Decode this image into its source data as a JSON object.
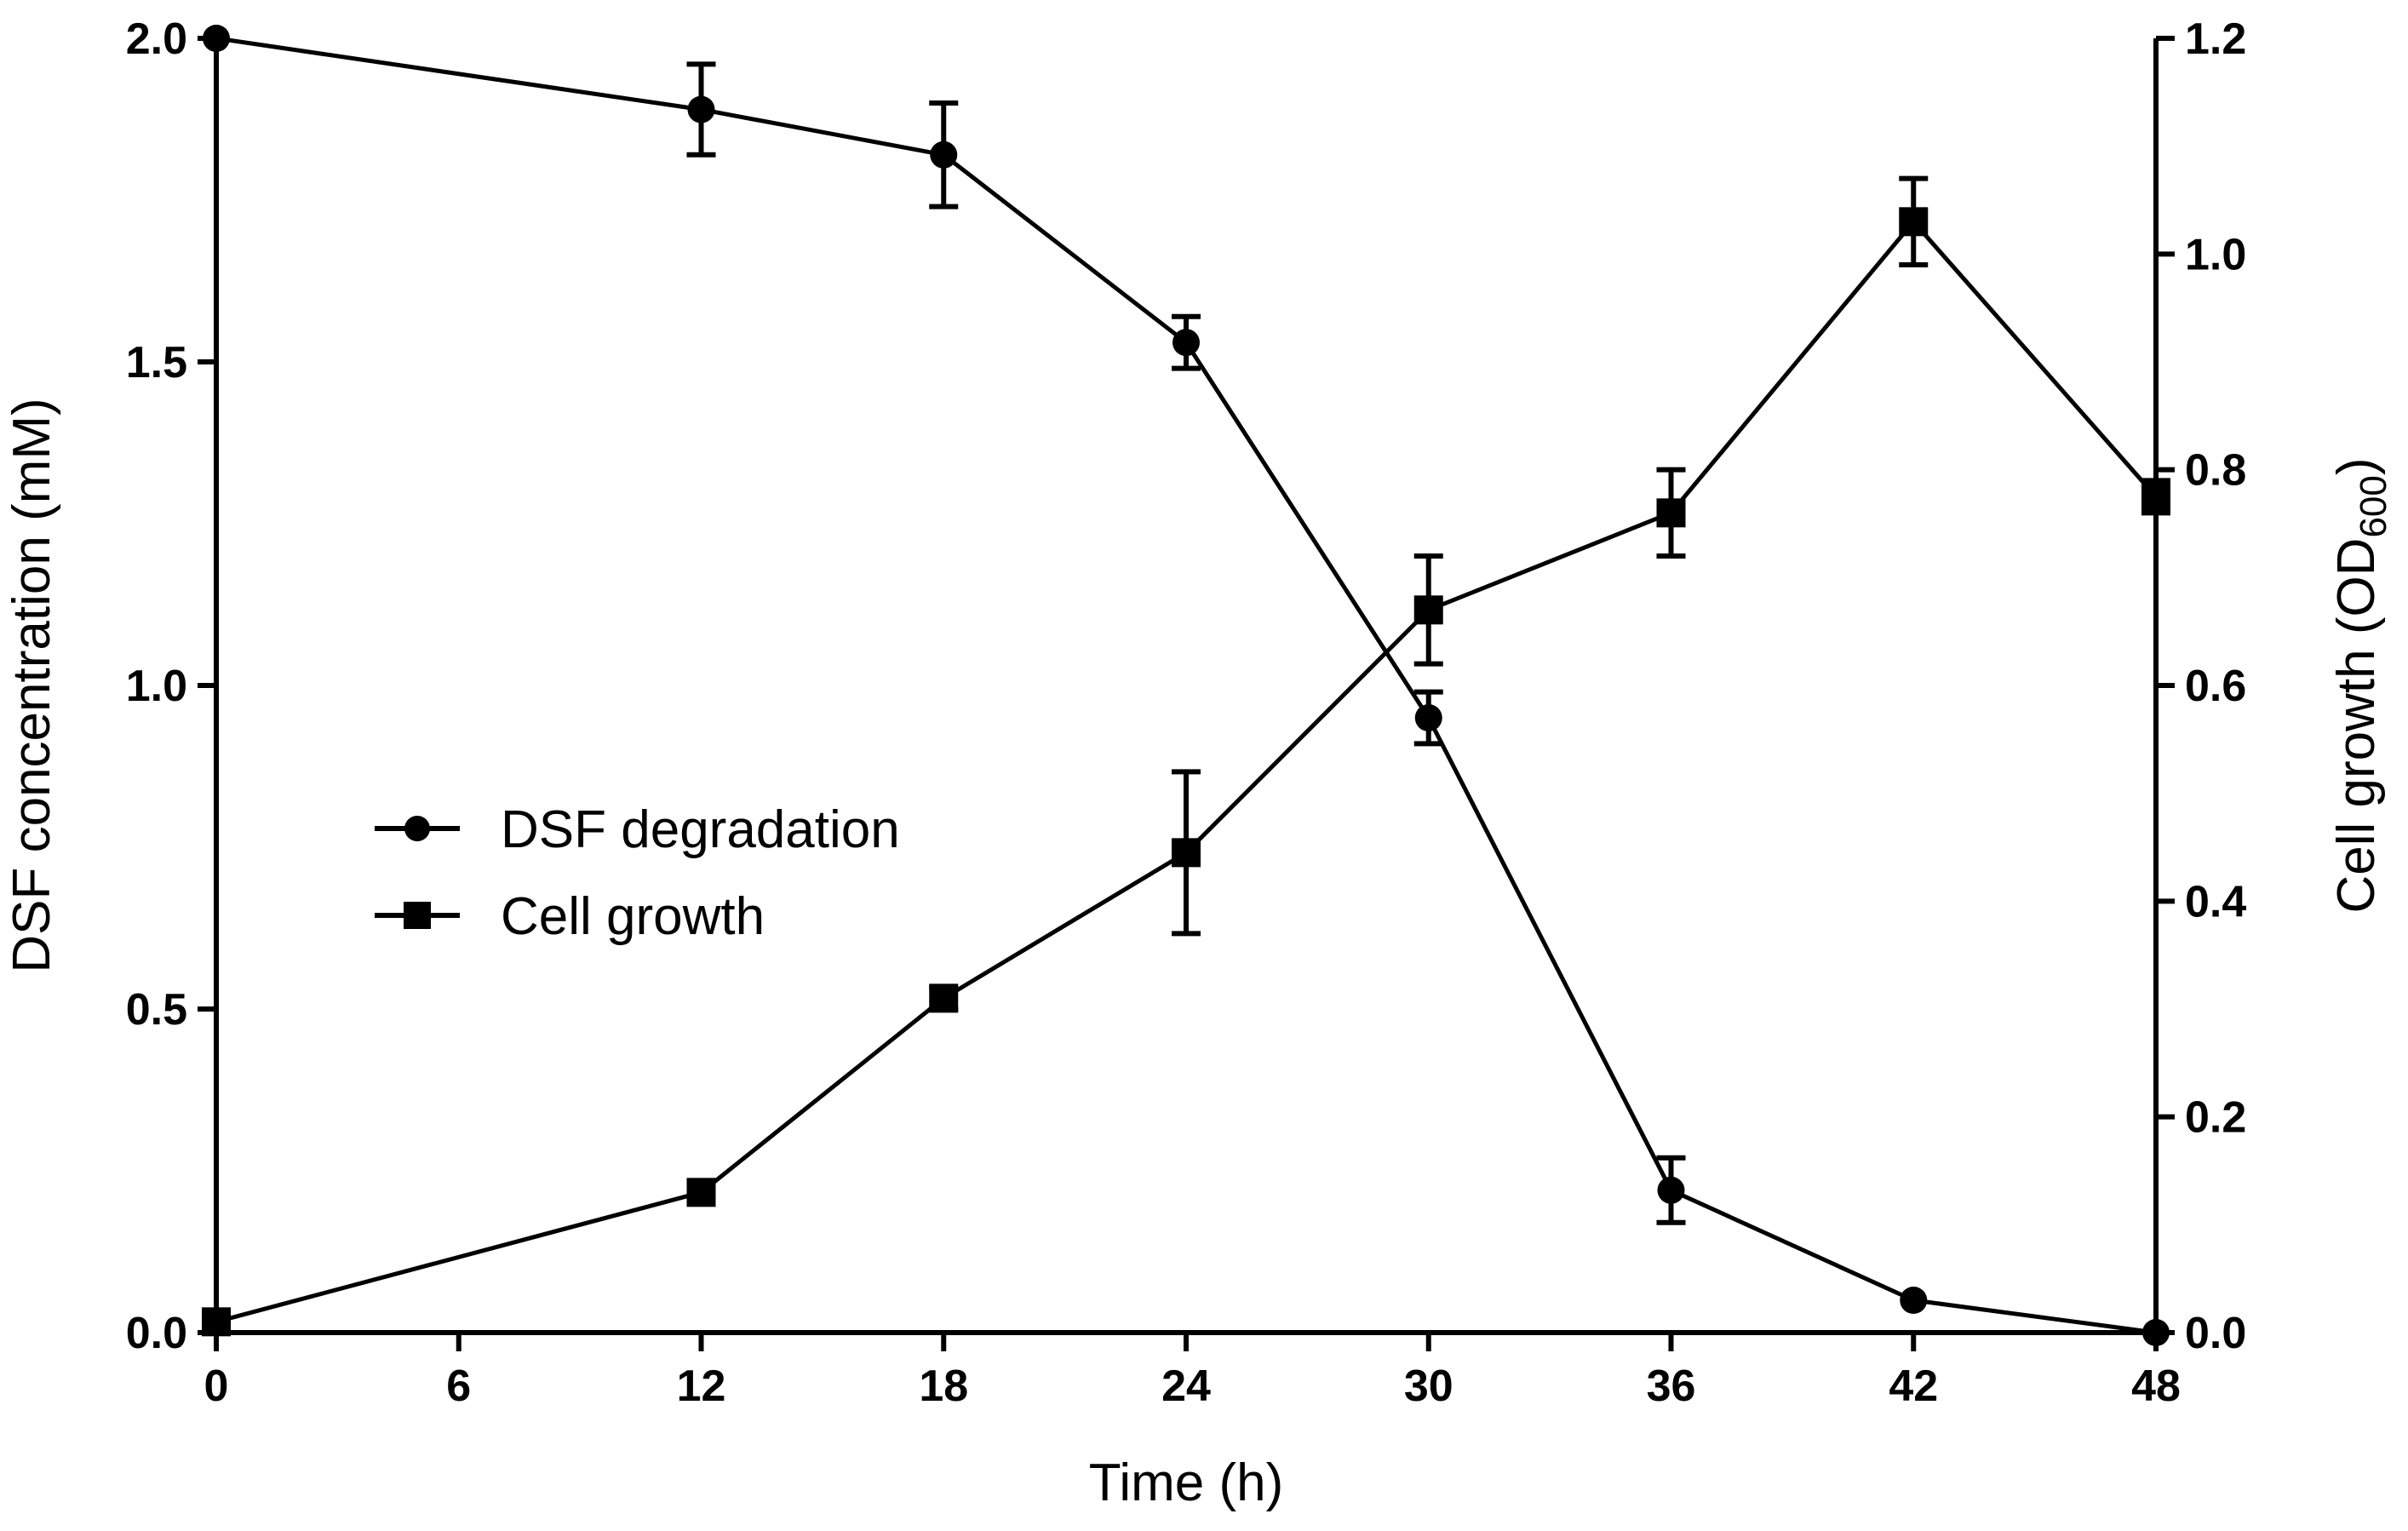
{
  "chart_data": {
    "type": "line",
    "title": "",
    "x": [
      0,
      12,
      18,
      24,
      30,
      36,
      42,
      48
    ],
    "xlabel": "Time (h)",
    "xlim": [
      0,
      48
    ],
    "xticks": [
      0,
      6,
      12,
      18,
      24,
      30,
      36,
      42,
      48
    ],
    "xtick_labels": [
      "0",
      "6",
      "12",
      "18",
      "24",
      "30",
      "36",
      "42",
      "48"
    ],
    "left_axis": {
      "label": "DSF concentration (mM)",
      "ylim": [
        0,
        2.0
      ],
      "ticks": [
        0,
        0.5,
        1.0,
        1.5,
        2.0
      ],
      "tick_labels": [
        "0.0",
        "0.5",
        "1.0",
        "1.5",
        "2.0"
      ]
    },
    "right_axis": {
      "label_main": "Cell growth (OD",
      "label_sub": "600",
      "label_end": ")",
      "ylim": [
        0,
        1.2
      ],
      "ticks": [
        0,
        0.2,
        0.4,
        0.6,
        0.8,
        1.0,
        1.2
      ],
      "tick_labels": [
        "0.0",
        "0.2",
        "0.4",
        "0.6",
        "0.8",
        "1.0",
        "1.2"
      ]
    },
    "series": [
      {
        "name": "DSF degradation",
        "axis": "left",
        "marker": "circle",
        "values": [
          2.0,
          1.89,
          1.82,
          1.53,
          0.95,
          0.22,
          0.05,
          0.0
        ],
        "errors": [
          0,
          0.07,
          0.08,
          0.04,
          0.04,
          0.05,
          0,
          0
        ]
      },
      {
        "name": "Cell growth",
        "axis": "right",
        "marker": "square",
        "values": [
          0.01,
          0.13,
          0.31,
          0.445,
          0.67,
          0.76,
          1.03,
          0.775
        ],
        "errors": [
          0,
          0,
          0.01,
          0.075,
          0.05,
          0.04,
          0.04,
          0.015
        ]
      }
    ],
    "legend_position": "center-left",
    "grid": false
  }
}
